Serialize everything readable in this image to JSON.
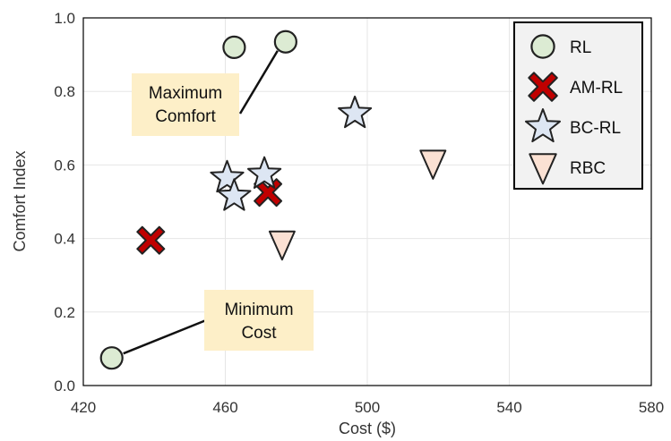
{
  "chart_data": {
    "type": "scatter",
    "xlabel": "Cost ($)",
    "ylabel": "Comfort Index",
    "xlim": [
      420,
      580
    ],
    "ylim": [
      0.0,
      1.0
    ],
    "xticks": [
      "420",
      "460",
      "500",
      "540",
      "580"
    ],
    "yticks": [
      "0.0",
      "0.2",
      "0.4",
      "0.6",
      "0.8",
      "1.0"
    ],
    "grid": true,
    "legend_position": "top-right",
    "series": [
      {
        "name": "RL",
        "marker": "circle",
        "color": "#dcebd3",
        "points": [
          {
            "x": 428,
            "y": 0.075
          },
          {
            "x": 462.5,
            "y": 0.92
          },
          {
            "x": 477,
            "y": 0.935
          }
        ]
      },
      {
        "name": "AM-RL",
        "marker": "x",
        "color": "#c00000",
        "points": [
          {
            "x": 439,
            "y": 0.395
          },
          {
            "x": 472,
            "y": 0.525
          }
        ]
      },
      {
        "name": "BC-RL",
        "marker": "star",
        "color": "#dde6f3",
        "points": [
          {
            "x": 460.5,
            "y": 0.565
          },
          {
            "x": 462.5,
            "y": 0.515
          },
          {
            "x": 471,
            "y": 0.575
          },
          {
            "x": 496.5,
            "y": 0.74
          }
        ]
      },
      {
        "name": "RBC",
        "marker": "triangle-down",
        "color": "#fbe1d3",
        "points": [
          {
            "x": 476,
            "y": 0.385
          },
          {
            "x": 518.5,
            "y": 0.605
          }
        ]
      }
    ],
    "annotations": [
      {
        "lines": [
          "Maximum",
          "Comfort"
        ],
        "target": {
          "x": 477,
          "y": 0.935
        }
      },
      {
        "lines": [
          "Minimum",
          "Cost"
        ],
        "target": {
          "x": 428,
          "y": 0.075
        }
      }
    ],
    "colors": {
      "annotation_box": "#fdefc8",
      "legend_bg": "#f2f2f2",
      "grid": "#e6e6e6",
      "frame": "#000000"
    }
  }
}
